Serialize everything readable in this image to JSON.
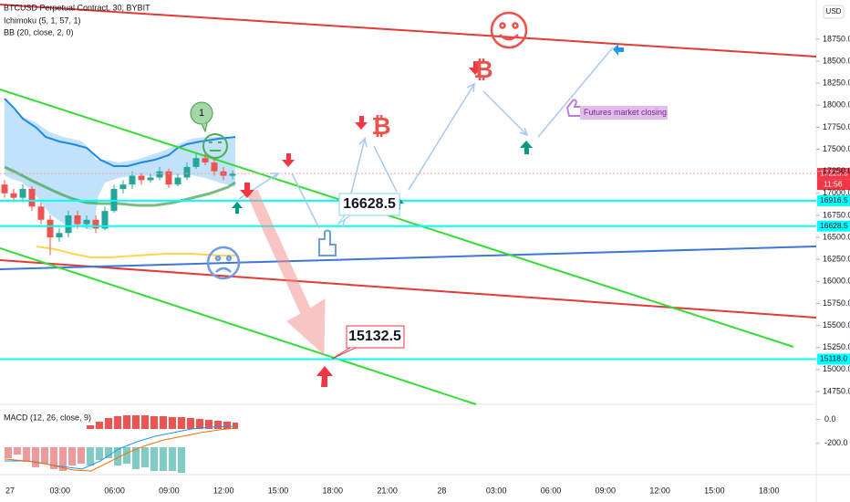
{
  "chart_data": {
    "type": "candlestick",
    "title": "BTCUSD Perpetual Contract, 30, BYBIT",
    "indicators": [
      "Ichimoku (5, 1, 57, 1)",
      "BB (20, close, 2, 0)"
    ],
    "macd_title": "MACD (12, 26, close, 9)",
    "currency": "USD",
    "ylim": [
      14636,
      19195
    ],
    "yticks": [
      {
        "value": 14750,
        "label": "14750.0"
      },
      {
        "value": 15000,
        "label": "15000.0"
      },
      {
        "value": 15250,
        "label": "15250.0"
      },
      {
        "value": 15500,
        "label": "15500.0"
      },
      {
        "value": 15750,
        "label": "15750.0"
      },
      {
        "value": 16000,
        "label": "16000.0"
      },
      {
        "value": 16250,
        "label": "16250.0"
      },
      {
        "value": 16500,
        "label": "16500.0"
      },
      {
        "value": 16750,
        "label": "16750.0"
      },
      {
        "value": 17000,
        "label": "17000.0"
      },
      {
        "value": 17250,
        "label": "17250.0"
      },
      {
        "value": 17500,
        "label": "17500.0"
      },
      {
        "value": 17750,
        "label": "17750.0"
      },
      {
        "value": 18000,
        "label": "18000.0"
      },
      {
        "value": 18250,
        "label": "18250.0"
      },
      {
        "value": 18500,
        "label": "18500.0"
      },
      {
        "value": 18750,
        "label": "18750.0"
      }
    ],
    "macd_ylim": [
      -460,
      110
    ],
    "macd_yticks": [
      {
        "value": 0,
        "label": "0.0"
      },
      {
        "value": -200,
        "label": "-200.0"
      }
    ],
    "time_labels": [
      "27",
      "03:00",
      "06:00",
      "09:00",
      "12:00",
      "15:00",
      "18:00",
      "21:00",
      "28",
      "03:00",
      "06:00",
      "09:00",
      "12:00",
      "15:00",
      "18:00"
    ],
    "candles": {
      "open": [
        17100,
        17000,
        16950,
        17050,
        16850,
        16700,
        16500,
        16550,
        16750,
        16650,
        16700,
        16600,
        16800,
        17050,
        17100,
        17200,
        17150,
        17180,
        17250,
        17100,
        17180,
        17300,
        17400,
        17350,
        17250,
        17200
      ],
      "high": [
        17150,
        17050,
        17100,
        17080,
        16900,
        16750,
        16600,
        16800,
        16800,
        16750,
        16750,
        16850,
        17100,
        17150,
        17250,
        17230,
        17220,
        17300,
        17280,
        17220,
        17350,
        17450,
        17460,
        17400,
        17300,
        17260
      ],
      "low": [
        16950,
        16900,
        16900,
        16800,
        16650,
        16300,
        16450,
        16500,
        16600,
        16600,
        16550,
        16580,
        16780,
        17000,
        17050,
        17100,
        17120,
        17150,
        17060,
        17080,
        17150,
        17280,
        17320,
        17200,
        17150,
        17160
      ],
      "close": [
        17000,
        16950,
        17050,
        16850,
        16700,
        16500,
        16550,
        16750,
        16650,
        16700,
        16600,
        16800,
        17050,
        17100,
        17200,
        17150,
        17180,
        17250,
        17100,
        17180,
        17300,
        17400,
        17350,
        17250,
        17200,
        17225.5
      ]
    },
    "up_color": "#26a69a",
    "down_color": "#ef5350",
    "price_tags": [
      {
        "value": 17225.5,
        "label": "17225.5",
        "color": "#f23645"
      },
      {
        "value": 16916.5,
        "label": "16916.5",
        "color": "#00ffff"
      },
      {
        "value": 16628.5,
        "label": "16628.5",
        "color": "#00ffff"
      },
      {
        "value": 15118.0,
        "label": "15118.0",
        "color": "#00ffff"
      }
    ],
    "countdown": "11:56",
    "annotations": [
      "16628.5",
      "15132.5",
      "Futures market closing",
      "1"
    ],
    "icon": "₿"
  }
}
